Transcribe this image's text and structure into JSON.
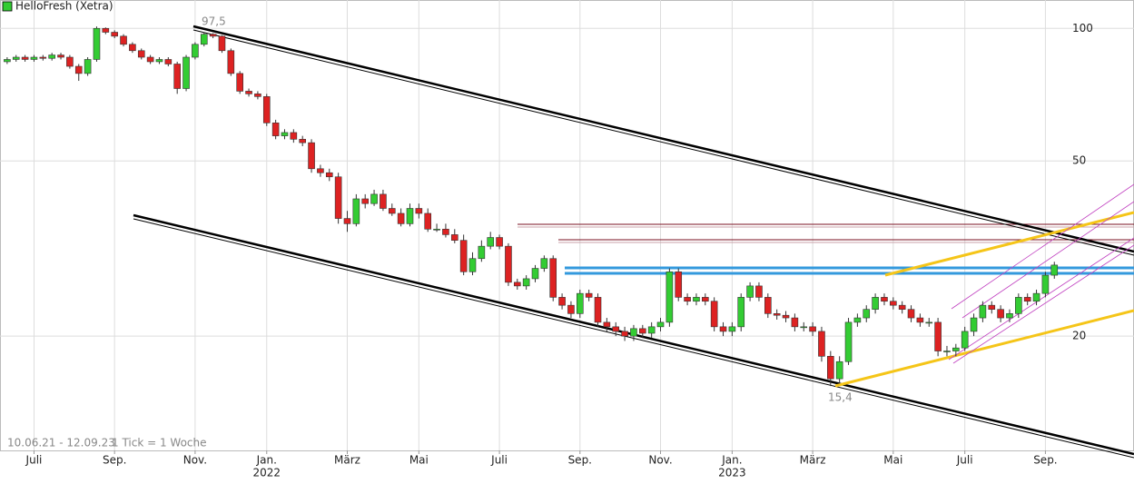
{
  "chart_data": {
    "type": "candlestick",
    "title": "HelloFresh (Xetra)",
    "footnote": "10.06.21 - 12.09.23",
    "tick_note": "1 Tick = 1 Woche",
    "annotations": [
      {
        "text": "97,5"
      },
      {
        "text": "15,4"
      }
    ],
    "log": true,
    "grid": true,
    "up_color": "#3c3",
    "down_color": "#d22",
    "xlim": [
      -0.8,
      125.9
    ],
    "xticks": [
      {
        "value": 3,
        "label": "Juli"
      },
      {
        "value": 12,
        "label": "Sep."
      },
      {
        "value": 21,
        "label": "Nov."
      },
      {
        "value": 29,
        "label": "Jan.",
        "year": "2022"
      },
      {
        "value": 38,
        "label": "März"
      },
      {
        "value": 46,
        "label": "Mai"
      },
      {
        "value": 55,
        "label": "Juli"
      },
      {
        "value": 64,
        "label": "Sep."
      },
      {
        "value": 73,
        "label": "Nov."
      },
      {
        "value": 81,
        "label": "Jan.",
        "year": "2023"
      },
      {
        "value": 90,
        "label": "März"
      },
      {
        "value": 99,
        "label": "Mai"
      },
      {
        "value": 107,
        "label": "Juli"
      },
      {
        "value": 116,
        "label": "Sep."
      }
    ],
    "ylim": [
      11,
      116
    ],
    "yticks": [
      100,
      50,
      20
    ],
    "open": [
      84,
      85,
      86,
      85,
      86,
      85.5,
      87,
      86,
      82,
      79,
      85,
      100,
      98,
      96,
      92,
      89,
      86,
      84,
      85,
      83,
      73,
      86,
      92,
      97,
      96,
      89,
      79,
      72,
      71,
      70,
      61,
      57,
      58,
      56,
      55,
      48,
      47,
      46,
      37,
      36,
      41,
      40,
      42,
      39,
      38,
      36,
      39,
      38,
      35,
      35,
      34,
      33,
      28,
      30,
      32,
      33.5,
      32,
      26.5,
      26,
      27,
      28.5,
      30,
      24.5,
      23.5,
      22.5,
      25,
      24.5,
      21.5,
      21,
      20.5,
      20,
      20.8,
      20.3,
      21,
      21.5,
      28,
      24.5,
      24,
      24.5,
      24,
      21,
      20.5,
      21,
      24.5,
      26,
      24.5,
      22.5,
      22.3,
      22,
      21,
      21,
      20.5,
      18,
      16,
      17.5,
      21.5,
      22,
      23,
      24.5,
      24,
      23.5,
      23,
      22,
      21.5,
      21.5,
      18.5,
      18.5,
      18.8,
      20.5,
      22,
      23.5,
      23,
      22,
      22.5,
      24.5,
      24,
      25,
      27.5
    ],
    "high": [
      86,
      87,
      87,
      87,
      87,
      88,
      88,
      87,
      83,
      86,
      101,
      100.5,
      99,
      97,
      93,
      90,
      87,
      86,
      86,
      84,
      87,
      93,
      98,
      97.5,
      96.5,
      90,
      80,
      73,
      72,
      71,
      62,
      59,
      59,
      57,
      56,
      49,
      48,
      47,
      38.5,
      42,
      42,
      43,
      43,
      40,
      39,
      40,
      40,
      39,
      36,
      36,
      35,
      34,
      31,
      33,
      34.5,
      34,
      32.5,
      27,
      27.5,
      29,
      30.5,
      30.5,
      25,
      24,
      25.5,
      25.5,
      25,
      22,
      21.5,
      21,
      21.2,
      21.2,
      21.5,
      22,
      28.5,
      28.5,
      25,
      25,
      25,
      24.5,
      21.5,
      21.5,
      25,
      26.5,
      26.5,
      25,
      23,
      22.8,
      22.5,
      21.5,
      21.5,
      21,
      18.5,
      18,
      22,
      22.5,
      23.5,
      25,
      25,
      24.5,
      24,
      23.5,
      22.5,
      22,
      22,
      19,
      19.2,
      21,
      22.5,
      24,
      24,
      23.5,
      23,
      25,
      25,
      25.5,
      28,
      29.5
    ],
    "low": [
      83,
      84,
      84,
      84,
      84.5,
      84.5,
      85,
      81,
      76,
      78,
      84,
      97,
      95,
      91,
      88,
      85,
      83,
      83,
      82,
      71,
      72,
      85,
      91,
      95,
      88,
      78,
      71,
      70,
      69,
      60,
      56,
      56,
      55,
      54,
      47,
      46,
      45,
      36,
      34.5,
      35.5,
      39,
      39.5,
      38.5,
      37.5,
      35.5,
      35.5,
      37,
      34.5,
      34.5,
      33.5,
      32.5,
      27.5,
      27.5,
      29.5,
      31.5,
      31.5,
      26,
      25.5,
      25.5,
      26.5,
      28,
      24,
      23,
      22,
      22,
      24,
      21,
      20.5,
      20,
      19.5,
      19.5,
      19.8,
      19.8,
      20.5,
      21,
      24,
      23.5,
      23.5,
      23.5,
      20.5,
      20,
      20,
      20.5,
      24,
      24,
      22,
      21.8,
      21.5,
      20.5,
      20.5,
      20,
      17.5,
      15.4,
      15.6,
      17.2,
      21,
      21.5,
      22.5,
      23.5,
      23,
      22.5,
      21.5,
      21,
      21,
      18,
      18,
      18,
      18.5,
      20,
      21.5,
      22.5,
      21.5,
      21.5,
      22,
      23.5,
      23.5,
      24.5,
      27
    ],
    "close": [
      85,
      86,
      85,
      86,
      85.5,
      87,
      86,
      82,
      79,
      85,
      100,
      98,
      96,
      92,
      89,
      86,
      84,
      85,
      83,
      73,
      86,
      92,
      97,
      96,
      89,
      79,
      72,
      71,
      70,
      61,
      57,
      58,
      56,
      55,
      48,
      47,
      46,
      37,
      36,
      41,
      40,
      42,
      39,
      38,
      36,
      39,
      38,
      35,
      35,
      34,
      33,
      28,
      30,
      32,
      33.5,
      32,
      26.5,
      26,
      27,
      28.5,
      30,
      24.5,
      23.5,
      22.5,
      25,
      24.5,
      21.5,
      21,
      20.5,
      20,
      20.8,
      20.3,
      21,
      21.5,
      28,
      24.5,
      24,
      24.5,
      24,
      21,
      20.5,
      21,
      24.5,
      26,
      24.5,
      22.5,
      22.3,
      22,
      21,
      21,
      20.5,
      18,
      16,
      17.5,
      21.5,
      22,
      23,
      24.5,
      24,
      23.5,
      23,
      22,
      21.5,
      21.5,
      18.5,
      18.5,
      18.8,
      20.5,
      22,
      23.5,
      23,
      22,
      22.5,
      24.5,
      24,
      25,
      27.5,
      29
    ]
  }
}
